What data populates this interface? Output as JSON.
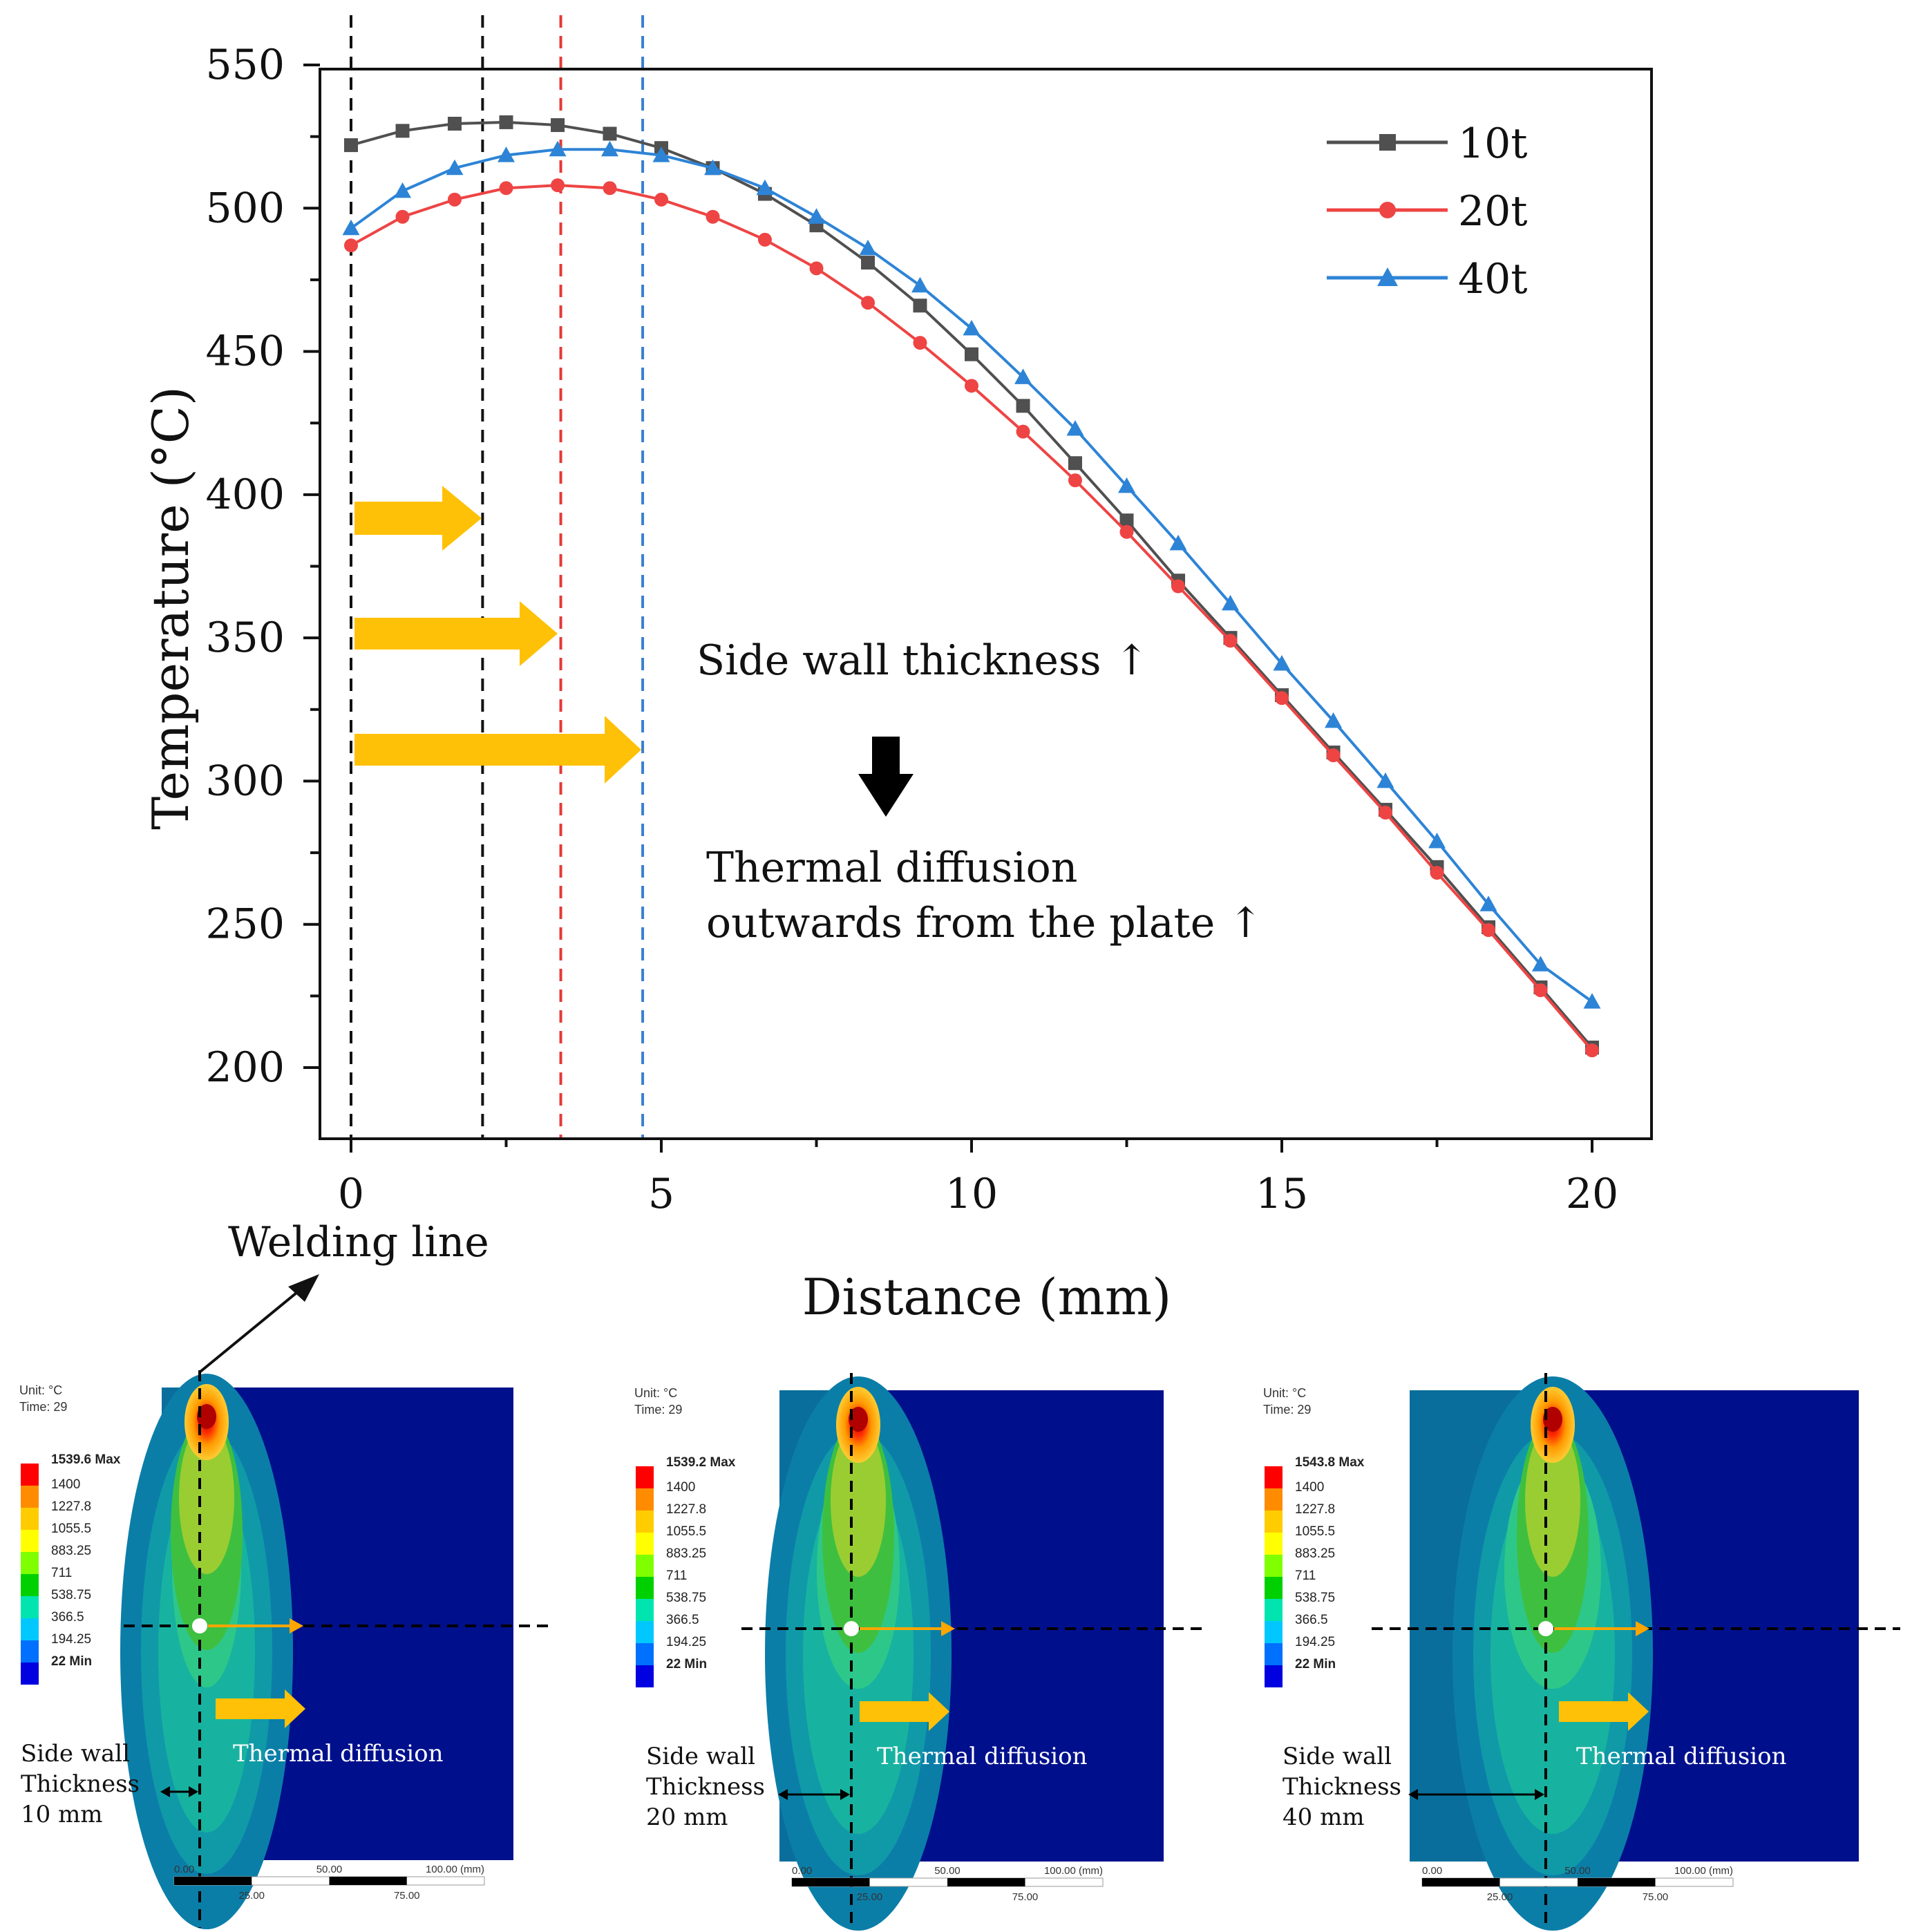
{
  "chart_data": {
    "type": "line",
    "xlabel": "Distance (mm)",
    "ylabel": "Temperature (°C)",
    "xlim": [
      -1,
      21
    ],
    "ylim": [
      175,
      550
    ],
    "x_ticks": [
      0,
      5,
      10,
      15,
      20
    ],
    "y_ticks": [
      200,
      250,
      300,
      350,
      400,
      450,
      500,
      550
    ],
    "legend_position": "top-right",
    "series": [
      {
        "name": "10t",
        "color": "#505050",
        "marker": "square",
        "x": [
          0,
          0.83,
          1.67,
          2.5,
          3.33,
          4.17,
          5,
          5.83,
          6.67,
          7.5,
          8.33,
          9.17,
          10,
          10.83,
          11.67,
          12.5,
          13.33,
          14.17,
          15,
          15.83,
          16.67,
          17.5,
          18.33,
          19.17,
          20
        ],
        "values": [
          522,
          527,
          529.5,
          530,
          529,
          526,
          521,
          514,
          505,
          494,
          481,
          466,
          449,
          431,
          411,
          391,
          370,
          350,
          330,
          310,
          290,
          270,
          249,
          228,
          207
        ]
      },
      {
        "name": "20t",
        "color": "#ee4444",
        "marker": "circle",
        "x": [
          0,
          0.83,
          1.67,
          2.5,
          3.33,
          4.17,
          5,
          5.83,
          6.67,
          7.5,
          8.33,
          9.17,
          10,
          10.83,
          11.67,
          12.5,
          13.33,
          14.17,
          15,
          15.83,
          16.67,
          17.5,
          18.33,
          19.17,
          20
        ],
        "values": [
          487,
          497,
          503,
          507,
          508,
          507,
          503,
          497,
          489,
          479,
          467,
          453,
          438,
          422,
          405,
          387,
          368,
          349,
          329,
          309,
          289,
          268,
          248,
          227,
          206
        ]
      },
      {
        "name": "40t",
        "color": "#2d84d6",
        "marker": "triangle",
        "x": [
          0,
          0.83,
          1.67,
          2.5,
          3.33,
          4.17,
          5,
          5.83,
          6.67,
          7.5,
          8.33,
          9.17,
          10,
          10.83,
          11.67,
          12.5,
          13.33,
          14.17,
          15,
          15.83,
          16.67,
          17.5,
          18.33,
          19.17,
          20
        ],
        "values": [
          493,
          506,
          514,
          518.5,
          520.5,
          520.5,
          518.5,
          514,
          507,
          497,
          486,
          473,
          458,
          441,
          423,
          403,
          383,
          362,
          341,
          321,
          300,
          279,
          257,
          236,
          223
        ]
      }
    ],
    "reference_lines": [
      {
        "x": 0,
        "color": "#111111"
      },
      {
        "x": 2.12,
        "color": "#111111"
      },
      {
        "x": 3.38,
        "color": "#e53935"
      },
      {
        "x": 4.7,
        "color": "#3b7fd0"
      }
    ],
    "annotations": {
      "side_wall": "Side wall thickness",
      "thermal_1": "Thermal diffusion",
      "thermal_2": "outwards from the plate",
      "welding_line": "Welding line"
    }
  },
  "panels": [
    {
      "unit": "Unit: °C",
      "time": "Time: 29",
      "legend_values": [
        "1539.6 Max",
        "1400",
        "1227.8",
        "1055.5",
        "883.25",
        "711",
        "538.75",
        "366.5",
        "194.25",
        "22 Min"
      ],
      "diffusion": "Thermal diffusion",
      "side_wall": [
        "Side wall",
        "Thickness",
        "10 mm"
      ],
      "scale_top": [
        "0.00",
        "50.00",
        "100.00 (mm)"
      ],
      "scale_bottom": [
        "25.00",
        "75.00"
      ]
    },
    {
      "unit": "Unit: °C",
      "time": "Time: 29",
      "legend_values": [
        "1539.2 Max",
        "1400",
        "1227.8",
        "1055.5",
        "883.25",
        "711",
        "538.75",
        "366.5",
        "194.25",
        "22 Min"
      ],
      "diffusion": "Thermal diffusion",
      "side_wall": [
        "Side wall",
        "Thickness",
        "20 mm"
      ],
      "scale_top": [
        "0.00",
        "50.00",
        "100.00 (mm)"
      ],
      "scale_bottom": [
        "25.00",
        "75.00"
      ]
    },
    {
      "unit": "Unit: °C",
      "time": "Time: 29",
      "legend_values": [
        "1543.8 Max",
        "1400",
        "1227.8",
        "1055.5",
        "883.25",
        "711",
        "538.75",
        "366.5",
        "194.25",
        "22 Min"
      ],
      "diffusion": "Thermal diffusion",
      "side_wall": [
        "Side wall",
        "Thickness",
        "40 mm"
      ],
      "scale_top": [
        "0.00",
        "50.00",
        "100.00 (mm)"
      ],
      "scale_bottom": [
        "25.00",
        "75.00"
      ]
    }
  ],
  "colors": {
    "contour_bg": "#00108c",
    "arrow_yellow": "#ffc107",
    "legend_scale": [
      "#ff0000",
      "#ff8c00",
      "#ffcc00",
      "#ffff00",
      "#7fff00",
      "#00d000",
      "#00e5b0",
      "#00c8ff",
      "#0070ff",
      "#0000e0"
    ]
  }
}
